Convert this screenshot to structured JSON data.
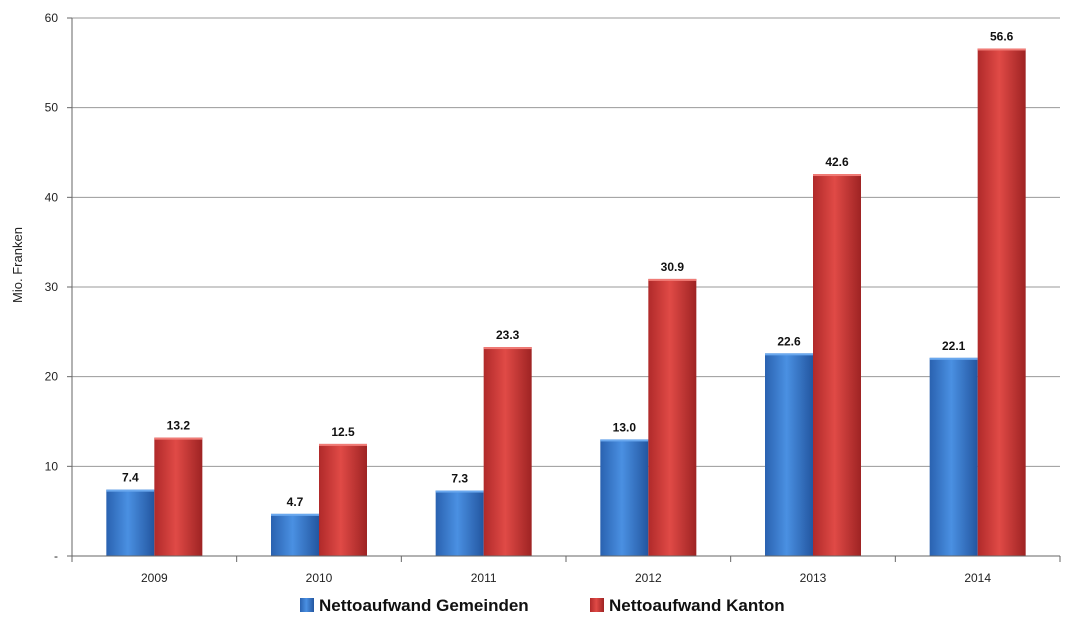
{
  "chart_data": {
    "type": "bar",
    "categories": [
      "2009",
      "2010",
      "2011",
      "2012",
      "2013",
      "2014"
    ],
    "series": [
      {
        "name": "Nettoaufwand Gemeinden",
        "values": [
          7.4,
          4.7,
          7.3,
          13.0,
          22.6,
          22.1
        ],
        "color": "#3b7fd4",
        "labels": [
          "7.4",
          "4.7",
          "7.3",
          "13.0",
          "22.6",
          "22.1"
        ]
      },
      {
        "name": "Nettoaufwand Kanton",
        "values": [
          13.2,
          12.5,
          23.3,
          30.9,
          42.6,
          56.6
        ],
        "color": "#d63c3c",
        "labels": [
          "13.2",
          "12.5",
          "23.3",
          "30.9",
          "42.6",
          "56.6"
        ]
      }
    ],
    "ylabel": "Mio. Franken",
    "ylim": [
      0,
      60
    ],
    "yticks": [
      "-",
      "10",
      "20",
      "30",
      "40",
      "50",
      "60"
    ],
    "grid": true,
    "legend": "bottom"
  }
}
